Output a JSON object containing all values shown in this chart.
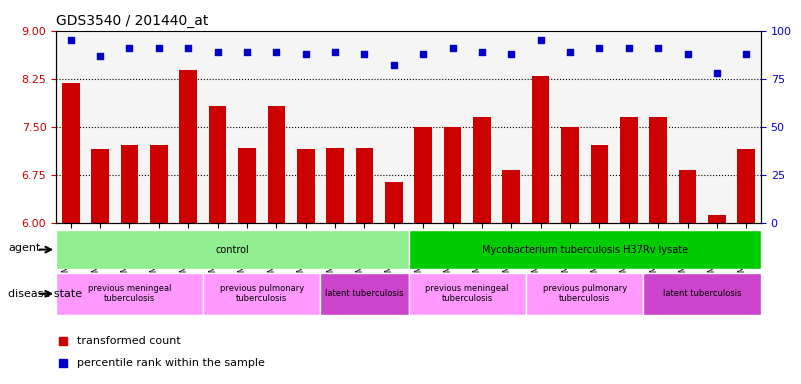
{
  "title": "GDS3540 / 201440_at",
  "samples": [
    "GSM280335",
    "GSM280341",
    "GSM280351",
    "GSM280353",
    "GSM280333",
    "GSM280339",
    "GSM280347",
    "GSM280349",
    "GSM280331",
    "GSM280337",
    "GSM280343",
    "GSM280345",
    "GSM280336",
    "GSM280342",
    "GSM280352",
    "GSM280354",
    "GSM280334",
    "GSM280340",
    "GSM280348",
    "GSM280350",
    "GSM280332",
    "GSM280338",
    "GSM280344",
    "GSM280346"
  ],
  "bar_values": [
    8.18,
    7.15,
    7.22,
    7.22,
    8.38,
    7.82,
    7.17,
    7.83,
    7.15,
    7.17,
    7.17,
    6.63,
    7.5,
    7.5,
    7.65,
    6.82,
    8.3,
    7.5,
    7.22,
    7.65,
    7.65,
    6.82,
    6.12,
    7.15
  ],
  "percentile_values": [
    95,
    87,
    91,
    91,
    91,
    89,
    89,
    89,
    88,
    89,
    88,
    82,
    88,
    91,
    89,
    88,
    95,
    89,
    91,
    91,
    91,
    88,
    78,
    88
  ],
  "ylim_left": [
    6,
    9
  ],
  "ylim_right": [
    0,
    100
  ],
  "yticks_left": [
    6,
    6.75,
    7.5,
    8.25,
    9
  ],
  "yticks_right": [
    0,
    25,
    50,
    75,
    100
  ],
  "bar_color": "#cc0000",
  "dot_color": "#0000cc",
  "bg_color": "#ffffff",
  "agent_groups": [
    {
      "label": "control",
      "start": 0,
      "end": 11,
      "color": "#90ee90"
    },
    {
      "label": "Mycobacterium tuberculosis H37Rv lysate",
      "start": 12,
      "end": 23,
      "color": "#00cc00"
    }
  ],
  "disease_groups": [
    {
      "label": "previous meningeal\ntuberculosis",
      "start": 0,
      "end": 4,
      "color": "#ff99ff"
    },
    {
      "label": "previous pulmonary\ntuberculosis",
      "start": 5,
      "end": 8,
      "color": "#ff99ff"
    },
    {
      "label": "latent tuberculosis",
      "start": 9,
      "end": 11,
      "color": "#cc44cc"
    },
    {
      "label": "previous meningeal\ntuberculosis",
      "start": 12,
      "end": 15,
      "color": "#ff99ff"
    },
    {
      "label": "previous pulmonary\ntuberculosis",
      "start": 16,
      "end": 19,
      "color": "#ff99ff"
    },
    {
      "label": "latent tuberculosis",
      "start": 20,
      "end": 23,
      "color": "#cc44cc"
    }
  ],
  "legend_items": [
    {
      "label": "transformed count",
      "color": "#cc0000",
      "marker": "s"
    },
    {
      "label": "percentile rank within the sample",
      "color": "#0000cc",
      "marker": "s"
    }
  ]
}
